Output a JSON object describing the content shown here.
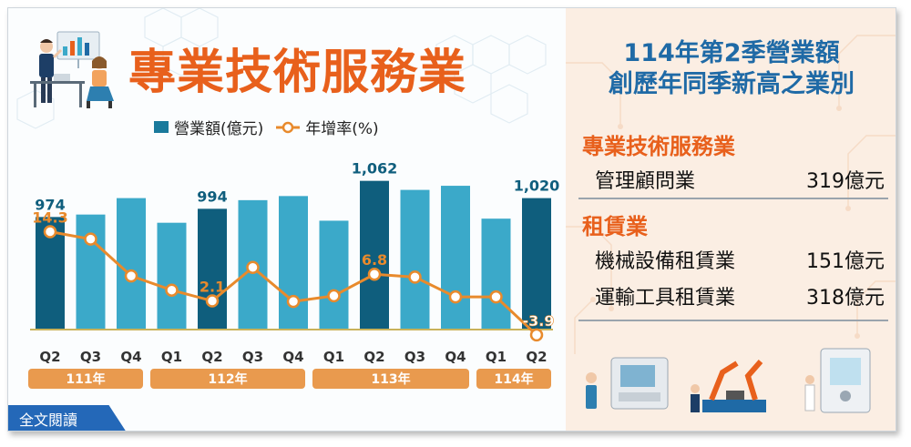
{
  "title": "專業技術服務業",
  "legend": {
    "bar_label": "營業額(億元)",
    "line_label": "年增率(%)"
  },
  "colors": {
    "bar_dark": "#0f5e7d",
    "bar_light": "#3ba9c9",
    "line": "#e88a2c",
    "title": "#e8601c",
    "headline": "#1f6aa6",
    "year_band": "#e99a4e",
    "button": "#2468b8"
  },
  "chart_data": {
    "type": "bar",
    "categories": [
      "Q2",
      "Q3",
      "Q4",
      "Q1",
      "Q2",
      "Q3",
      "Q4",
      "Q1",
      "Q2",
      "Q3",
      "Q4",
      "Q1",
      "Q2"
    ],
    "year_groups": [
      {
        "label": "111年",
        "start": 0,
        "end": 2
      },
      {
        "label": "112年",
        "start": 3,
        "end": 6
      },
      {
        "label": "113年",
        "start": 7,
        "end": 10
      },
      {
        "label": "114年",
        "start": 11,
        "end": 12
      }
    ],
    "series": [
      {
        "name": "營業額(億元)",
        "type": "bar",
        "values": [
          974,
          980,
          1020,
          960,
          994,
          1015,
          1025,
          965,
          1062,
          1040,
          1050,
          970,
          1020
        ]
      },
      {
        "name": "年增率(%)",
        "type": "line",
        "values": [
          14.3,
          13.0,
          6.5,
          4.0,
          2.1,
          8.0,
          2.0,
          3.0,
          6.8,
          6.3,
          2.8,
          2.8,
          -3.9
        ]
      }
    ],
    "bar_labels": [
      {
        "index": 0,
        "text": "974"
      },
      {
        "index": 4,
        "text": "994"
      },
      {
        "index": 8,
        "text": "1,062"
      },
      {
        "index": 12,
        "text": "1,020"
      }
    ],
    "line_labels": [
      {
        "index": 0,
        "text": "14.3"
      },
      {
        "index": 4,
        "text": "2.1"
      },
      {
        "index": 8,
        "text": "6.8"
      },
      {
        "index": 12,
        "text": "-3.9"
      }
    ],
    "highlight_indices": [
      0,
      4,
      8,
      12
    ],
    "bar_ylim": [
      700,
      1110
    ],
    "line_ylim": [
      -6,
      20
    ]
  },
  "panel": {
    "headline_line1": "114年第2季營業額",
    "headline_line2": "創歷年同季新高之業別",
    "section1": {
      "title": "專業技術服務業",
      "items": [
        {
          "name": "管理顧問業",
          "value": "319億元"
        }
      ]
    },
    "section2": {
      "title": "租賃業",
      "items": [
        {
          "name": "機械設備租賃業",
          "value": "151億元"
        },
        {
          "name": "運輸工具租賃業",
          "value": "318億元"
        }
      ]
    }
  },
  "read_more": "全文閱讀"
}
